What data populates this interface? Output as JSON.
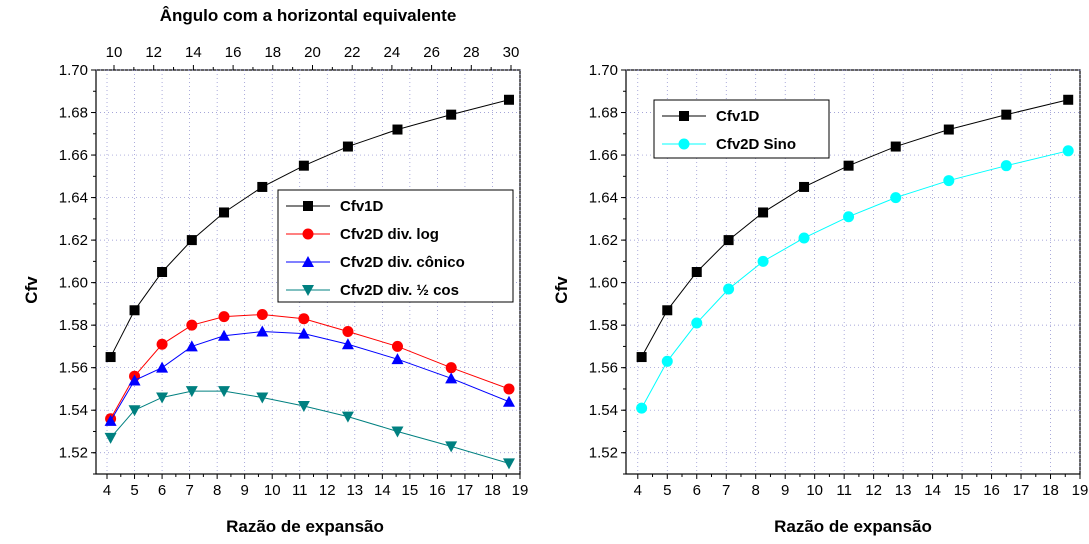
{
  "chart_data": [
    {
      "type": "line",
      "title": "",
      "top_axis_title": "Ângulo com a horizontal equivalente",
      "top_ticks": [
        "10",
        "12",
        "14",
        "16",
        "18",
        "20",
        "22",
        "24",
        "26",
        "28",
        "30"
      ],
      "xlabel": "Razão de expansão",
      "ylabel": "Cfv",
      "xlim": [
        3.6,
        19.0
      ],
      "ylim": [
        1.51,
        1.7
      ],
      "x_ticks": [
        "4",
        "5",
        "6",
        "7",
        "8",
        "9",
        "10",
        "11",
        "12",
        "13",
        "14",
        "15",
        "16",
        "17",
        "18",
        "19"
      ],
      "y_ticks": [
        "1.52",
        "1.54",
        "1.56",
        "1.58",
        "1.60",
        "1.62",
        "1.64",
        "1.66",
        "1.68",
        "1.70"
      ],
      "grid": true,
      "legend_position": "center-right",
      "series": [
        {
          "name": "Cfv1D",
          "color": "#000000",
          "marker": "square",
          "x": [
            4.13,
            5.0,
            6.0,
            7.08,
            8.25,
            9.64,
            11.15,
            12.75,
            14.55,
            16.5,
            18.6
          ],
          "y": [
            1.565,
            1.587,
            1.605,
            1.62,
            1.633,
            1.645,
            1.655,
            1.664,
            1.672,
            1.679,
            1.686
          ]
        },
        {
          "name": "Cfv2D div. log",
          "color": "#ff0000",
          "marker": "circle",
          "x": [
            4.13,
            5.0,
            6.0,
            7.08,
            8.25,
            9.64,
            11.15,
            12.75,
            14.55,
            16.5,
            18.6
          ],
          "y": [
            1.536,
            1.556,
            1.571,
            1.58,
            1.584,
            1.585,
            1.583,
            1.577,
            1.57,
            1.56,
            1.55
          ]
        },
        {
          "name": "Cfv2D div. cônico",
          "color": "#0000ff",
          "marker": "triangle-up",
          "x": [
            4.13,
            5.0,
            6.0,
            7.08,
            8.25,
            9.64,
            11.15,
            12.75,
            14.55,
            16.5,
            18.6
          ],
          "y": [
            1.535,
            1.554,
            1.56,
            1.57,
            1.575,
            1.577,
            1.576,
            1.571,
            1.564,
            1.555,
            1.544
          ]
        },
        {
          "name": "Cfv2D div. ½ cos",
          "color": "#008080",
          "marker": "triangle-down",
          "x": [
            4.13,
            5.0,
            6.0,
            7.08,
            8.25,
            9.64,
            11.15,
            12.75,
            14.55,
            16.5,
            18.6
          ],
          "y": [
            1.527,
            1.54,
            1.546,
            1.549,
            1.549,
            1.546,
            1.542,
            1.537,
            1.53,
            1.523,
            1.515
          ]
        }
      ]
    },
    {
      "type": "line",
      "title": "",
      "xlabel": "Razão de expansão",
      "ylabel": "Cfv",
      "xlim": [
        3.6,
        19.0
      ],
      "ylim": [
        1.51,
        1.7
      ],
      "x_ticks": [
        "4",
        "5",
        "6",
        "7",
        "8",
        "9",
        "10",
        "11",
        "12",
        "13",
        "14",
        "15",
        "16",
        "17",
        "18",
        "19"
      ],
      "y_ticks": [
        "1.52",
        "1.54",
        "1.56",
        "1.58",
        "1.60",
        "1.62",
        "1.64",
        "1.66",
        "1.68",
        "1.70"
      ],
      "grid": true,
      "legend_position": "top-left",
      "series": [
        {
          "name": "Cfv1D",
          "color": "#000000",
          "marker": "square",
          "x": [
            4.13,
            5.0,
            6.0,
            7.08,
            8.25,
            9.64,
            11.15,
            12.75,
            14.55,
            16.5,
            18.6
          ],
          "y": [
            1.565,
            1.587,
            1.605,
            1.62,
            1.633,
            1.645,
            1.655,
            1.664,
            1.672,
            1.679,
            1.686
          ]
        },
        {
          "name": "Cfv2D Sino",
          "color": "#00ffff",
          "marker": "circle",
          "x": [
            4.13,
            5.0,
            6.0,
            7.08,
            8.25,
            9.64,
            11.15,
            12.75,
            14.55,
            16.5,
            18.6
          ],
          "y": [
            1.541,
            1.563,
            1.581,
            1.597,
            1.61,
            1.621,
            1.631,
            1.64,
            1.648,
            1.655,
            1.662
          ]
        }
      ]
    }
  ]
}
